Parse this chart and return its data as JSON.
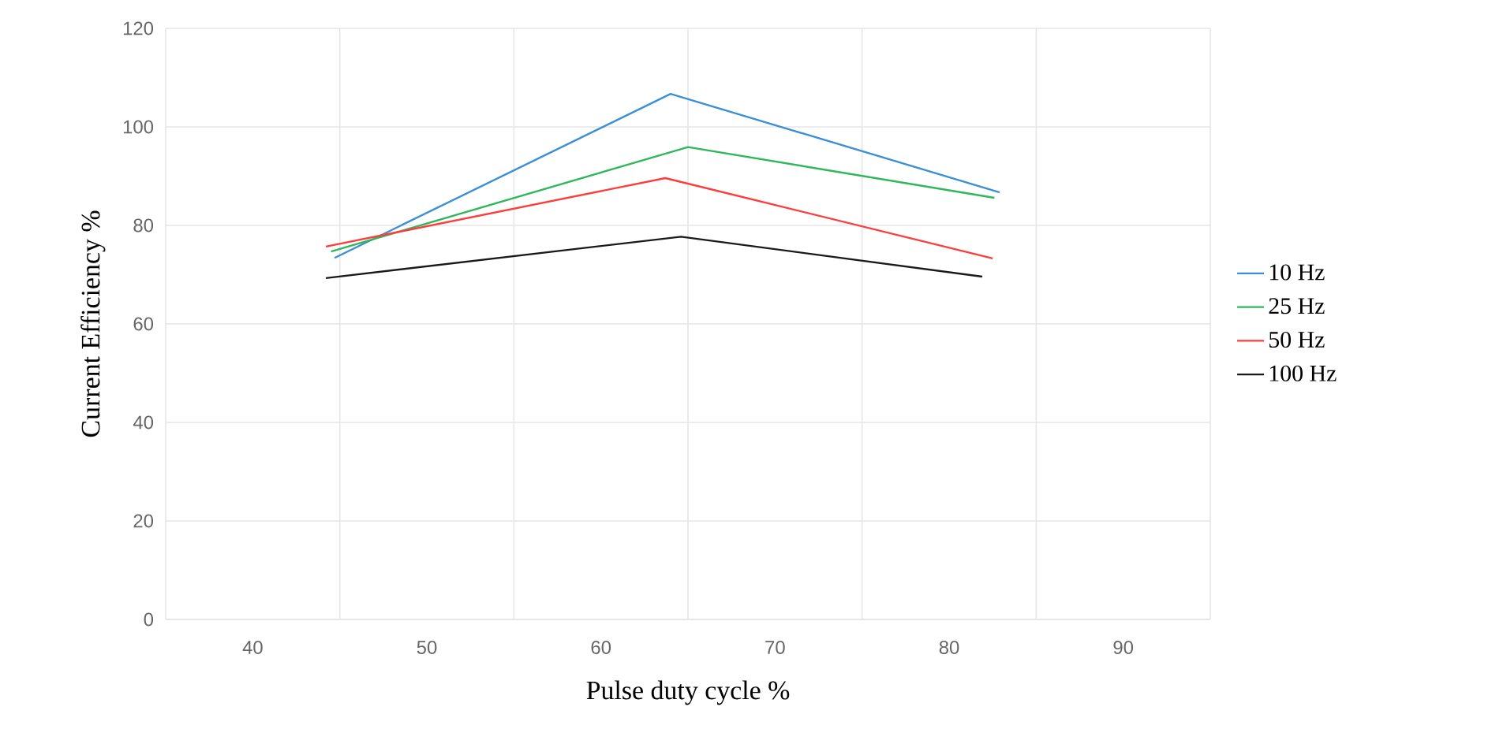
{
  "chart_data": {
    "type": "line",
    "xlabel": "Pulse duty cycle %",
    "ylabel": "Current Efficiency %",
    "xlim": [
      35,
      95
    ],
    "ylim": [
      0,
      120
    ],
    "xticks": [
      {
        "value": 35,
        "label": null
      },
      40,
      {
        "value": 45,
        "label": null
      },
      50,
      {
        "value": 55,
        "label": null
      },
      60,
      {
        "value": 65,
        "label": null
      },
      70,
      {
        "value": 75,
        "label": null
      },
      80,
      {
        "value": 85,
        "label": null
      },
      90,
      {
        "value": 95,
        "label": null
      }
    ],
    "yticks": [
      0,
      20,
      40,
      60,
      80,
      100,
      120
    ],
    "grid": true,
    "legend": "right",
    "marker": "none",
    "line_style": "solid",
    "series": [
      {
        "name": "10 Hz",
        "color": "#3b8fd6",
        "x": [
          44.7,
          64.0,
          82.9
        ],
        "values": [
          73.4,
          106.7,
          86.7
        ]
      },
      {
        "name": "25 Hz",
        "color": "#2fb85a",
        "x": [
          44.5,
          65.0,
          82.6
        ],
        "values": [
          74.7,
          95.9,
          85.6
        ]
      },
      {
        "name": "50 Hz",
        "color": "#ff3b3b",
        "x": [
          44.2,
          63.7,
          82.5
        ],
        "values": [
          75.7,
          89.6,
          73.3
        ]
      },
      {
        "name": "100 Hz",
        "color": "#1a1a1a",
        "x": [
          44.2,
          64.6,
          81.9
        ],
        "values": [
          69.3,
          77.7,
          69.6
        ]
      }
    ]
  }
}
